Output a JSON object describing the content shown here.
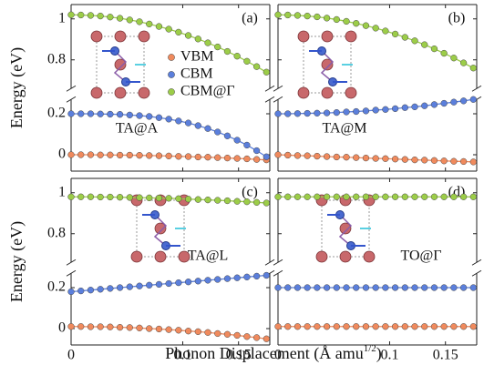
{
  "xlabel": {
    "text": "Phonon Displacement (Å amu",
    "superscript": "1/2",
    "suffix": ")"
  },
  "chart_data": [
    {
      "type": "line",
      "label": "(a)",
      "annotation": "TA@A",
      "ylabel": "Energy (eV)",
      "x": [
        0,
        0.00875,
        0.0175,
        0.02625,
        0.035,
        0.04375,
        0.0525,
        0.06125,
        0.07,
        0.07875,
        0.0875,
        0.09625,
        0.105,
        0.11375,
        0.1225,
        0.13125,
        0.14,
        0.14875,
        0.1575,
        0.16625,
        0.175
      ],
      "xlim": [
        0,
        0.178
      ],
      "xticks": [
        0,
        0.1,
        0.15
      ],
      "ylim_lower": [
        -0.08,
        0.27
      ],
      "yticks_lower": [
        0,
        0.2
      ],
      "ylim_upper": [
        0.66,
        1.07
      ],
      "yticks_upper": [
        0.8,
        1
      ],
      "show_xticklabels": false,
      "show_yticklabels": true,
      "legend": "center",
      "series": [
        {
          "name": "VBM",
          "color": "#f08a5d",
          "values": [
            0,
            0,
            0,
            -0.001,
            -0.001,
            -0.002,
            -0.002,
            -0.003,
            -0.004,
            -0.005,
            -0.006,
            -0.008,
            -0.009,
            -0.011,
            -0.012,
            -0.014,
            -0.016,
            -0.018,
            -0.02,
            -0.023,
            -0.025
          ]
        },
        {
          "name": "CBM",
          "color": "#5b7fdc",
          "values": [
            0.2,
            0.2,
            0.2,
            0.199,
            0.198,
            0.197,
            0.194,
            0.191,
            0.187,
            0.181,
            0.174,
            0.165,
            0.155,
            0.142,
            0.128,
            0.111,
            0.092,
            0.071,
            0.047,
            0.02,
            -0.01
          ]
        },
        {
          "name": "CBM@Γ",
          "color": "#9ccd48",
          "values": [
            1.02,
            1.019,
            1.017,
            1.014,
            1.009,
            1.003,
            0.995,
            0.986,
            0.975,
            0.963,
            0.95,
            0.935,
            0.919,
            0.902,
            0.883,
            0.863,
            0.841,
            0.818,
            0.793,
            0.767,
            0.74
          ]
        }
      ]
    },
    {
      "type": "line",
      "label": "(b)",
      "annotation": "TA@M",
      "x": [
        0,
        0.00875,
        0.0175,
        0.02625,
        0.035,
        0.04375,
        0.0525,
        0.06125,
        0.07,
        0.07875,
        0.0875,
        0.09625,
        0.105,
        0.11375,
        0.1225,
        0.13125,
        0.14,
        0.14875,
        0.1575,
        0.16625,
        0.175
      ],
      "xlim": [
        0,
        0.178
      ],
      "xticks": [
        0,
        0.1,
        0.15
      ],
      "ylim_lower": [
        -0.08,
        0.27
      ],
      "yticks_lower": [
        0,
        0.2
      ],
      "ylim_upper": [
        0.66,
        1.07
      ],
      "yticks_upper": [
        0.8,
        1
      ],
      "show_xticklabels": false,
      "show_yticklabels": false,
      "legend": false,
      "series": [
        {
          "color": "#f08a5d",
          "values": [
            0,
            -0.002,
            -0.004,
            -0.005,
            -0.007,
            -0.009,
            -0.011,
            -0.012,
            -0.014,
            -0.016,
            -0.018,
            -0.019,
            -0.021,
            -0.023,
            -0.025,
            -0.026,
            -0.028,
            -0.03,
            -0.032,
            -0.033,
            -0.035
          ]
        },
        {
          "color": "#5b7fdc",
          "values": [
            0.2,
            0.2,
            0.201,
            0.202,
            0.203,
            0.204,
            0.206,
            0.209,
            0.211,
            0.214,
            0.218,
            0.221,
            0.225,
            0.23,
            0.234,
            0.239,
            0.245,
            0.251,
            0.257,
            0.263,
            0.27
          ]
        },
        {
          "color": "#9ccd48",
          "values": [
            1.02,
            1.019,
            1.017,
            1.014,
            1.01,
            1.004,
            0.997,
            0.988,
            0.978,
            0.967,
            0.955,
            0.941,
            0.926,
            0.91,
            0.893,
            0.874,
            0.854,
            0.832,
            0.809,
            0.785,
            0.76
          ]
        }
      ]
    },
    {
      "type": "line",
      "label": "(c)",
      "annotation": "TA@L",
      "ylabel": "Energy (eV)",
      "x": [
        0,
        0.00875,
        0.0175,
        0.02625,
        0.035,
        0.04375,
        0.0525,
        0.06125,
        0.07,
        0.07875,
        0.0875,
        0.09625,
        0.105,
        0.11375,
        0.1225,
        0.13125,
        0.14,
        0.14875,
        0.1575,
        0.16625,
        0.175
      ],
      "xlim": [
        0,
        0.178
      ],
      "xticks": [
        0,
        0.1,
        0.15
      ],
      "ylim_lower": [
        -0.08,
        0.27
      ],
      "yticks_lower": [
        0,
        0.2
      ],
      "ylim_upper": [
        0.66,
        1.07
      ],
      "yticks_upper": [
        0.8,
        1
      ],
      "show_xticklabels": true,
      "show_yticklabels": true,
      "legend": false,
      "series": [
        {
          "color": "#f08a5d",
          "values": [
            0.01,
            0.01,
            0.009,
            0.009,
            0.008,
            0.006,
            0.005,
            0.003,
            0,
            -0.002,
            -0.005,
            -0.008,
            -0.012,
            -0.015,
            -0.019,
            -0.024,
            -0.028,
            -0.033,
            -0.039,
            -0.044,
            -0.05
          ]
        },
        {
          "color": "#5b7fdc",
          "values": [
            0.18,
            0.184,
            0.188,
            0.192,
            0.196,
            0.2,
            0.204,
            0.208,
            0.212,
            0.216,
            0.22,
            0.224,
            0.228,
            0.232,
            0.236,
            0.24,
            0.244,
            0.248,
            0.252,
            0.256,
            0.26
          ]
        },
        {
          "color": "#9ccd48",
          "values": [
            0.98,
            0.98,
            0.98,
            0.979,
            0.979,
            0.978,
            0.977,
            0.976,
            0.975,
            0.974,
            0.973,
            0.971,
            0.969,
            0.967,
            0.965,
            0.963,
            0.961,
            0.958,
            0.956,
            0.953,
            0.95
          ]
        }
      ]
    },
    {
      "type": "line",
      "label": "(d)",
      "annotation": "TO@Γ",
      "x": [
        0,
        0.00875,
        0.0175,
        0.02625,
        0.035,
        0.04375,
        0.0525,
        0.06125,
        0.07,
        0.07875,
        0.0875,
        0.09625,
        0.105,
        0.11375,
        0.1225,
        0.13125,
        0.14,
        0.14875,
        0.1575,
        0.16625,
        0.175
      ],
      "xlim": [
        0,
        0.178
      ],
      "xticks": [
        0,
        0.1,
        0.15
      ],
      "ylim_lower": [
        -0.08,
        0.27
      ],
      "yticks_lower": [
        0,
        0.2
      ],
      "ylim_upper": [
        0.66,
        1.07
      ],
      "yticks_upper": [
        0.8,
        1
      ],
      "show_xticklabels": true,
      "show_yticklabels": false,
      "legend": false,
      "series": [
        {
          "color": "#f08a5d",
          "values": [
            0.01,
            0.01,
            0.01,
            0.01,
            0.01,
            0.01,
            0.01,
            0.01,
            0.01,
            0.01,
            0.01,
            0.01,
            0.01,
            0.01,
            0.01,
            0.01,
            0.01,
            0.01,
            0.01,
            0.01,
            0.01
          ]
        },
        {
          "color": "#5b7fdc",
          "values": [
            0.2,
            0.2,
            0.2,
            0.2,
            0.2,
            0.2,
            0.2,
            0.2,
            0.2,
            0.2,
            0.2,
            0.2,
            0.2,
            0.2,
            0.2,
            0.2,
            0.2,
            0.2,
            0.2,
            0.2,
            0.2
          ]
        },
        {
          "color": "#9ccd48",
          "values": [
            0.98,
            0.98,
            0.98,
            0.98,
            0.98,
            0.98,
            0.98,
            0.98,
            0.98,
            0.98,
            0.98,
            0.98,
            0.98,
            0.98,
            0.98,
            0.98,
            0.98,
            0.98,
            0.98,
            0.98,
            0.98
          ]
        }
      ]
    }
  ]
}
